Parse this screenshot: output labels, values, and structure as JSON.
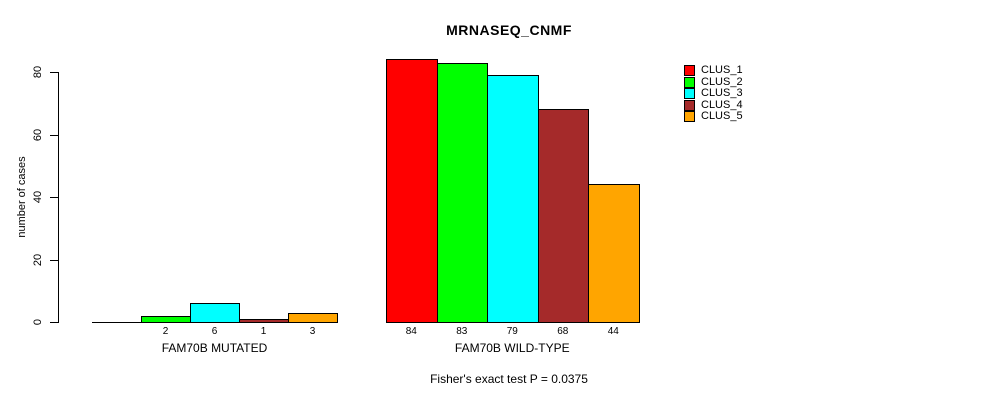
{
  "chart_data": {
    "type": "bar",
    "title": "MRNASEQ_CNMF",
    "ylabel": "number of cases",
    "xlabel": "",
    "ylim": [
      0,
      80
    ],
    "yticks": [
      0,
      20,
      40,
      60,
      80
    ],
    "grid": false,
    "legend_position": "right-of-plot",
    "background": "#ffffff",
    "categories": [
      "FAM70B MUTATED",
      "FAM70B WILD-TYPE"
    ],
    "series": [
      {
        "name": "CLUS_1",
        "color": "#ff0000",
        "values": [
          0,
          84
        ],
        "value_labels": [
          "",
          "84"
        ]
      },
      {
        "name": "CLUS_2",
        "color": "#00ff00",
        "values": [
          2,
          83
        ],
        "value_labels": [
          "2",
          "83"
        ]
      },
      {
        "name": "CLUS_3",
        "color": "#00ffff",
        "values": [
          6,
          79
        ],
        "value_labels": [
          "6",
          "79"
        ]
      },
      {
        "name": "CLUS_4",
        "color": "#a52a2a",
        "values": [
          1,
          68
        ],
        "value_labels": [
          "1",
          "68"
        ]
      },
      {
        "name": "CLUS_5",
        "color": "#ffa500",
        "values": [
          3,
          44
        ],
        "value_labels": [
          "3",
          "44"
        ]
      }
    ],
    "annotation": "Fisher's exact test P = 0.0375"
  },
  "legend": {
    "items": [
      {
        "label": "CLUS_1",
        "color": "#ff0000"
      },
      {
        "label": "CLUS_2",
        "color": "#00ff00"
      },
      {
        "label": "CLUS_3",
        "color": "#00ffff"
      },
      {
        "label": "CLUS_4",
        "color": "#a52a2a"
      },
      {
        "label": "CLUS_5",
        "color": "#ffa500"
      }
    ]
  }
}
